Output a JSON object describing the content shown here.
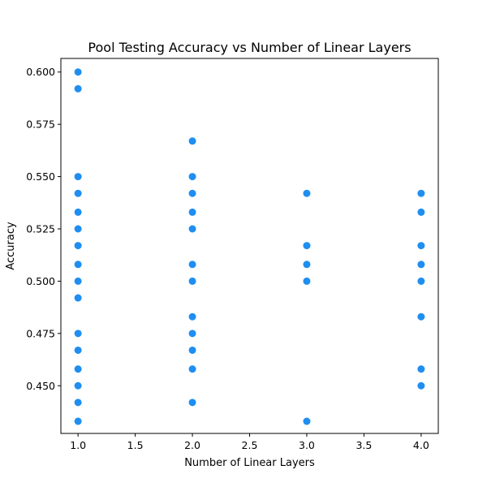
{
  "chart_data": {
    "type": "scatter",
    "title": "Pool Testing Accuracy vs Number of Linear Layers",
    "xlabel": "Number of Linear Layers",
    "ylabel": "Accuracy",
    "xlim": [
      0.85,
      4.15
    ],
    "ylim": [
      0.4272,
      0.6065
    ],
    "xticks": [
      "1.0",
      "1.5",
      "2.0",
      "2.5",
      "3.0",
      "3.5",
      "4.0"
    ],
    "yticks": [
      "0.450",
      "0.475",
      "0.500",
      "0.525",
      "0.550",
      "0.575",
      "0.600"
    ],
    "grid": false,
    "point_color": "#1f8ef1",
    "points": [
      {
        "x": 1,
        "y": 0.6
      },
      {
        "x": 1,
        "y": 0.592
      },
      {
        "x": 1,
        "y": 0.55
      },
      {
        "x": 1,
        "y": 0.542
      },
      {
        "x": 1,
        "y": 0.533
      },
      {
        "x": 1,
        "y": 0.525
      },
      {
        "x": 1,
        "y": 0.517
      },
      {
        "x": 1,
        "y": 0.508
      },
      {
        "x": 1,
        "y": 0.5
      },
      {
        "x": 1,
        "y": 0.492
      },
      {
        "x": 1,
        "y": 0.475
      },
      {
        "x": 1,
        "y": 0.467
      },
      {
        "x": 1,
        "y": 0.458
      },
      {
        "x": 1,
        "y": 0.45
      },
      {
        "x": 1,
        "y": 0.442
      },
      {
        "x": 1,
        "y": 0.433
      },
      {
        "x": 2,
        "y": 0.567
      },
      {
        "x": 2,
        "y": 0.55
      },
      {
        "x": 2,
        "y": 0.542
      },
      {
        "x": 2,
        "y": 0.533
      },
      {
        "x": 2,
        "y": 0.525
      },
      {
        "x": 2,
        "y": 0.508
      },
      {
        "x": 2,
        "y": 0.5
      },
      {
        "x": 2,
        "y": 0.483
      },
      {
        "x": 2,
        "y": 0.475
      },
      {
        "x": 2,
        "y": 0.467
      },
      {
        "x": 2,
        "y": 0.458
      },
      {
        "x": 2,
        "y": 0.442
      },
      {
        "x": 3,
        "y": 0.542
      },
      {
        "x": 3,
        "y": 0.517
      },
      {
        "x": 3,
        "y": 0.508
      },
      {
        "x": 3,
        "y": 0.5
      },
      {
        "x": 3,
        "y": 0.433
      },
      {
        "x": 4,
        "y": 0.542
      },
      {
        "x": 4,
        "y": 0.533
      },
      {
        "x": 4,
        "y": 0.517
      },
      {
        "x": 4,
        "y": 0.508
      },
      {
        "x": 4,
        "y": 0.5
      },
      {
        "x": 4,
        "y": 0.483
      },
      {
        "x": 4,
        "y": 0.458
      },
      {
        "x": 4,
        "y": 0.45
      }
    ]
  }
}
